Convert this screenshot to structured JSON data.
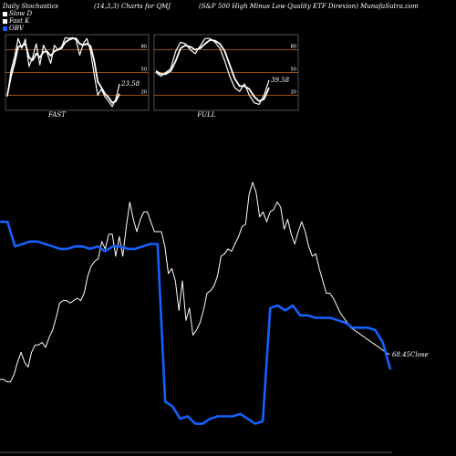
{
  "header": {
    "left": "Daily Stochastics",
    "mid": "(14,3,3) Charts for QMJ",
    "right": "(S&P 500  High Minus Low  Quality ETF Direxion) MunafaSutra.com"
  },
  "legend": [
    {
      "label": "Slow  D",
      "color": "#ffffff"
    },
    {
      "label": "Fast K",
      "color": "#ffffff"
    },
    {
      "label": "OBV",
      "color": "#1560ff"
    }
  ],
  "colors": {
    "obv": "#1560ff",
    "price": "#ffffff",
    "ref": "#c86414",
    "panel": "#000000"
  },
  "chart_data": [
    {
      "type": "line",
      "name": "FAST",
      "label": "FAST",
      "value_label": "23.58",
      "ylim": [
        0,
        100
      ],
      "ticks": [
        20,
        50,
        80
      ],
      "ref_lines": [
        20,
        50,
        80
      ],
      "series": [
        {
          "name": "Fast K",
          "values": [
            18,
            52,
            70,
            95,
            82,
            94,
            58,
            70,
            88,
            60,
            86,
            76,
            62,
            86,
            80,
            84,
            96,
            95,
            96,
            93,
            73,
            88,
            95,
            78,
            48,
            20,
            28,
            18,
            12,
            5,
            15,
            35
          ]
        },
        {
          "name": "Slow  D",
          "values": [
            20,
            45,
            62,
            84,
            85,
            88,
            70,
            66,
            75,
            70,
            77,
            78,
            72,
            78,
            80,
            82,
            90,
            93,
            95,
            95,
            88,
            86,
            88,
            85,
            66,
            38,
            30,
            22,
            17,
            10,
            12,
            22
          ]
        }
      ]
    },
    {
      "type": "line",
      "name": "FULL",
      "label": "FULL",
      "value_label": "39.58",
      "ylim": [
        0,
        100
      ],
      "ticks": [
        20,
        50,
        80
      ],
      "ref_lines": [
        20,
        50,
        80
      ],
      "series": [
        {
          "name": "Fast K",
          "values": [
            50,
            45,
            50,
            55,
            78,
            90,
            88,
            80,
            75,
            85,
            95,
            95,
            90,
            82,
            65,
            45,
            30,
            25,
            35,
            20,
            10,
            8,
            20,
            40
          ]
        },
        {
          "name": "Slow  D",
          "values": [
            52,
            48,
            48,
            52,
            65,
            82,
            86,
            84,
            80,
            82,
            88,
            93,
            92,
            88,
            78,
            60,
            42,
            32,
            32,
            28,
            18,
            12,
            15,
            30
          ]
        }
      ]
    },
    {
      "type": "line",
      "name": "OBV and Close",
      "value_label": "68.45",
      "value_label_suffix": "Close",
      "series": [
        {
          "name": "OBV",
          "values": [
            84,
            84,
            74,
            75,
            76,
            76,
            75,
            74,
            73,
            73,
            74,
            74,
            73,
            74,
            72,
            74,
            74,
            73,
            73,
            74,
            75,
            75,
            11,
            9,
            4,
            5,
            2,
            2,
            4,
            5,
            5,
            5,
            6,
            4,
            2,
            3,
            49,
            50,
            48,
            50,
            46,
            46,
            45,
            45,
            45,
            44,
            43,
            41,
            41,
            41,
            40,
            35,
            24
          ]
        },
        {
          "name": "Close",
          "values": [
            20,
            20,
            19,
            19,
            22,
            27,
            31,
            27,
            25,
            31,
            34,
            34,
            35,
            33,
            37,
            40,
            45,
            51,
            52,
            52,
            51,
            52,
            53,
            52,
            55,
            62,
            66,
            68,
            69,
            76,
            73,
            79,
            79,
            70,
            78,
            70,
            82,
            92,
            85,
            80,
            85,
            88,
            88,
            84,
            80,
            80,
            80,
            74,
            63,
            65,
            60,
            48,
            60,
            44,
            49,
            38,
            40,
            43,
            48,
            55,
            56,
            58,
            62,
            70,
            71,
            73,
            72,
            75,
            78,
            82,
            83,
            95,
            100,
            96,
            86,
            88,
            84,
            88,
            89,
            92,
            90,
            81,
            85,
            79,
            75,
            80,
            84,
            80,
            74,
            70,
            71,
            65,
            60,
            55,
            55,
            53,
            50,
            47,
            45,
            43,
            41,
            40,
            39,
            38,
            37,
            36,
            35,
            34,
            33,
            32,
            31,
            30
          ]
        }
      ]
    }
  ]
}
